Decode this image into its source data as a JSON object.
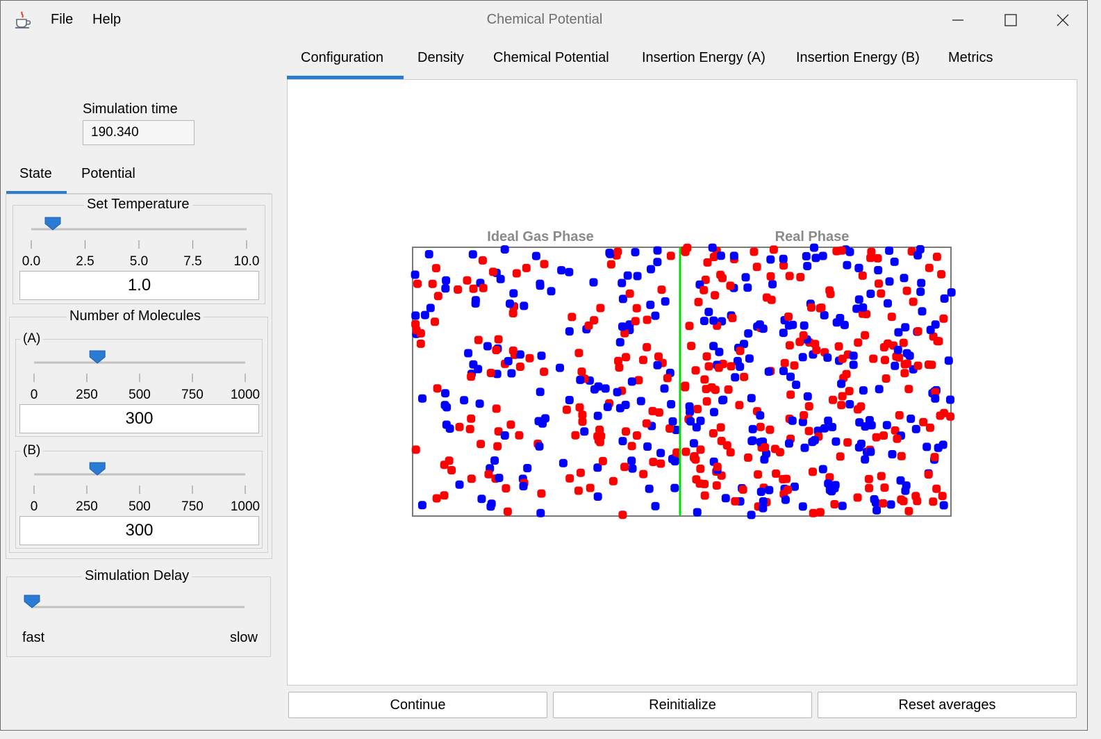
{
  "window": {
    "title": "Chemical Potential",
    "menu": [
      "File",
      "Help"
    ]
  },
  "left": {
    "sim_time_label": "Simulation time",
    "sim_time_value": "190.340",
    "tabs": [
      "State",
      "Potential"
    ],
    "temperature": {
      "title": "Set Temperature",
      "ticks": [
        "0.0",
        "2.5",
        "5.0",
        "7.5",
        "10.0"
      ],
      "value_text": "1.0",
      "level": 0.1
    },
    "molecules": {
      "title": "Number of Molecules",
      "a": {
        "label": "(A)",
        "ticks": [
          "0",
          "250",
          "500",
          "750",
          "1000"
        ],
        "value_text": "300",
        "level": 0.3
      },
      "b": {
        "label": "(B)",
        "ticks": [
          "0",
          "250",
          "500",
          "750",
          "1000"
        ],
        "value_text": "300",
        "level": 0.3
      }
    },
    "delay": {
      "title": "Simulation Delay",
      "min_label": "fast",
      "max_label": "slow",
      "level": 0.0
    }
  },
  "tabs": [
    "Configuration",
    "Density",
    "Chemical Potential",
    "Insertion Energy (A)",
    "Insertion Energy (B)",
    "Metrics"
  ],
  "sim": {
    "left_label": "Ideal Gas Phase",
    "right_label": "Real Phase",
    "colors": {
      "a": "#ff0000",
      "b": "#0000ff",
      "divider": "#00dd00",
      "label": "#8a8a8a"
    }
  },
  "buttons": {
    "continue": "Continue",
    "reinitialize": "Reinitialize",
    "reset": "Reset averages"
  },
  "icons": [
    "java-cup-icon",
    "minimize-icon",
    "maximize-icon",
    "close-icon",
    "slider-thumb-icon"
  ]
}
